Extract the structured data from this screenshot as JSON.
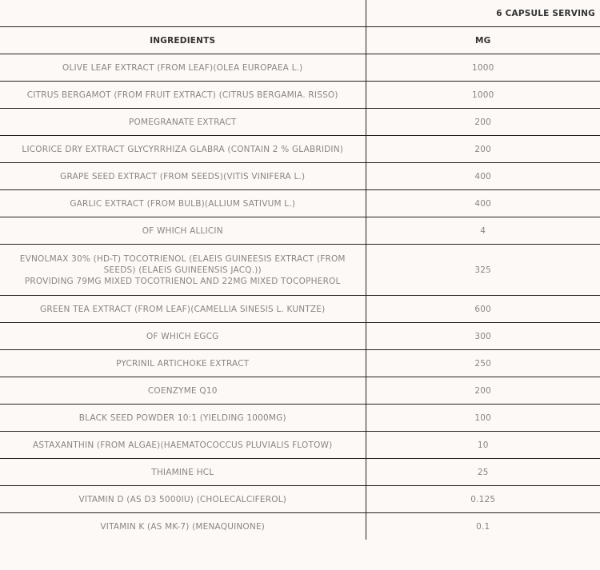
{
  "header": {
    "serving": "6 CAPSULE SERVING",
    "ingredients_label": "INGREDIENTS",
    "unit_label": "MG"
  },
  "rows": [
    {
      "name": "OLIVE LEAF EXTRACT (FROM LEAF)(OLEA EUROPAEA L.)",
      "mg": "1000"
    },
    {
      "name": "CITRUS BERGAMOT (FROM FRUIT EXTRACT) (CITRUS BERGAMIA. RISSO)",
      "mg": "1000"
    },
    {
      "name": "POMEGRANATE EXTRACT",
      "mg": "200"
    },
    {
      "name": "LICORICE DRY EXTRACT GLYCYRRHIZA GLABRA (CONTAIN 2 % GLABRIDIN)",
      "mg": "200"
    },
    {
      "name": "GRAPE SEED EXTRACT (FROM SEEDS)(VITIS VINIFERA L.)",
      "mg": "400"
    },
    {
      "name": "GARLIC EXTRACT (FROM BULB)(ALLIUM SATIVUM L.)",
      "mg": "400"
    },
    {
      "name": "OF WHICH ALLICIN",
      "mg": "4"
    },
    {
      "name": "EVNOLMAX 30% (HD-T) TOCOTRIENOL (ELAEIS GUINEESIS EXTRACT (FROM SEEDS) (ELAEIS GUINEENSIS JACQ.))",
      "name2": "PROVIDING 79MG MIXED TOCOTRIENOL AND 22MG MIXED TOCOPHEROL",
      "mg": "325"
    },
    {
      "name": "GREEN TEA EXTRACT (FROM LEAF)(CAMELLIA SINESIS L. KUNTZE)",
      "mg": "600"
    },
    {
      "name": "OF WHICH EGCG",
      "mg": "300"
    },
    {
      "name": "PYCRINIL ARTICHOKE EXTRACT",
      "mg": "250"
    },
    {
      "name": "COENZYME Q10",
      "mg": "200"
    },
    {
      "name": "BLACK SEED POWDER 10:1 (YIELDING 1000MG)",
      "mg": "100"
    },
    {
      "name": "ASTAXANTHIN (FROM ALGAE)(HAEMATOCOCCUS PLUVIALIS FLOTOW)",
      "mg": "10"
    },
    {
      "name": "THIAMINE HCL",
      "mg": "25"
    },
    {
      "name": "VITAMIN D (AS D3 5000IU) (CHOLECALCIFEROL)",
      "mg": "0.125"
    },
    {
      "name": "VITAMIN K (AS MK-7) (MENAQUINONE)",
      "mg": "0.1"
    }
  ]
}
